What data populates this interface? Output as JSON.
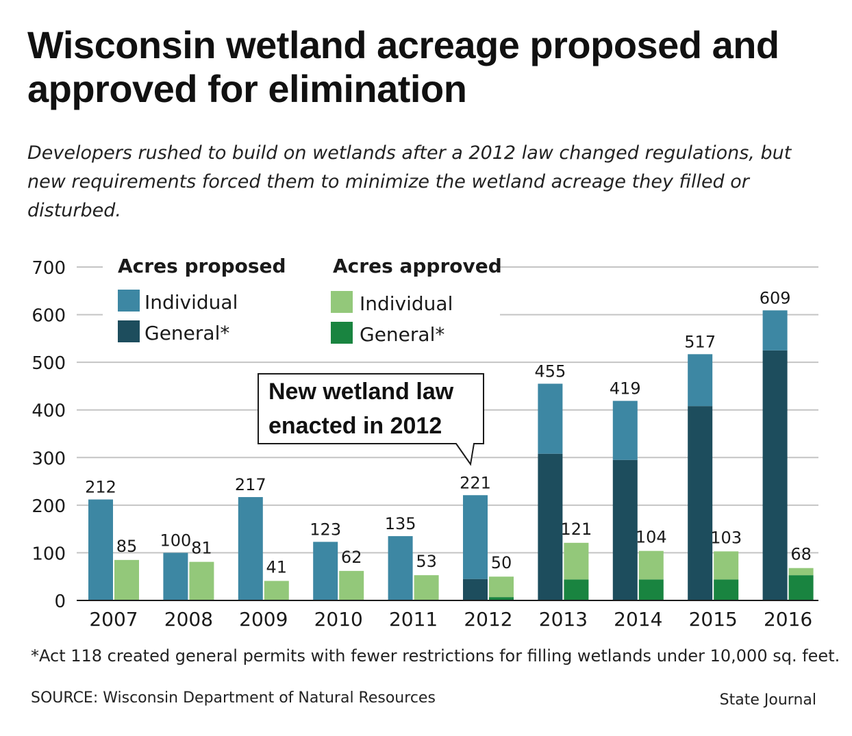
{
  "title": "Wisconsin wetland acreage proposed and approved for elimination",
  "subtitle": "Developers rushed to build on wetlands after a 2012 law changed regulations, but new requirements forced them to minimize the wetland acreage they filled or disturbed.",
  "footnote": "*Act 118 created general permits with fewer restrictions for filling wetlands under 10,000 sq. feet.",
  "source": "SOURCE: Wisconsin Department of Natural Resources",
  "credit": "State Journal",
  "annotation": {
    "line1": "New wetland law",
    "line2": "enacted in 2012"
  },
  "legend": {
    "proposed_header": "Acres proposed",
    "approved_header": "Acres approved",
    "individual_label": "Individual",
    "general_label": "General*"
  },
  "colors": {
    "proposed_individual": "#3d87a3",
    "proposed_general": "#1d4d5d",
    "approved_individual": "#93c87a",
    "approved_general": "#198440",
    "grid": "#c4c4c4"
  },
  "chart_data": {
    "type": "bar",
    "stacked": true,
    "grouped": true,
    "categories": [
      "2007",
      "2008",
      "2009",
      "2010",
      "2011",
      "2012",
      "2013",
      "2014",
      "2015",
      "2016"
    ],
    "yticks": [
      "0",
      "100",
      "200",
      "300",
      "400",
      "500",
      "600",
      "700"
    ],
    "ylim": [
      0,
      700
    ],
    "series": [
      {
        "name": "Acres proposed - General*",
        "group": "proposed",
        "values": [
          0,
          0,
          0,
          0,
          0,
          45,
          308,
          295,
          408,
          525
        ]
      },
      {
        "name": "Acres proposed - Individual",
        "group": "proposed",
        "values": [
          212,
          100,
          217,
          123,
          135,
          176,
          147,
          124,
          109,
          84
        ]
      },
      {
        "name": "Acres approved - General*",
        "group": "approved",
        "values": [
          0,
          0,
          0,
          0,
          0,
          7,
          44,
          44,
          44,
          53
        ]
      },
      {
        "name": "Acres approved - Individual",
        "group": "approved",
        "values": [
          85,
          81,
          41,
          62,
          53,
          43,
          77,
          60,
          59,
          15
        ]
      }
    ],
    "proposed_totals": [
      "212",
      "100",
      "217",
      "123",
      "135",
      "221",
      "455",
      "419",
      "517",
      "609"
    ],
    "approved_totals": [
      "85",
      "81",
      "41",
      "62",
      "53",
      "50",
      "121",
      "104",
      "103",
      "68"
    ],
    "grid": true,
    "legend_position": "top-left"
  }
}
